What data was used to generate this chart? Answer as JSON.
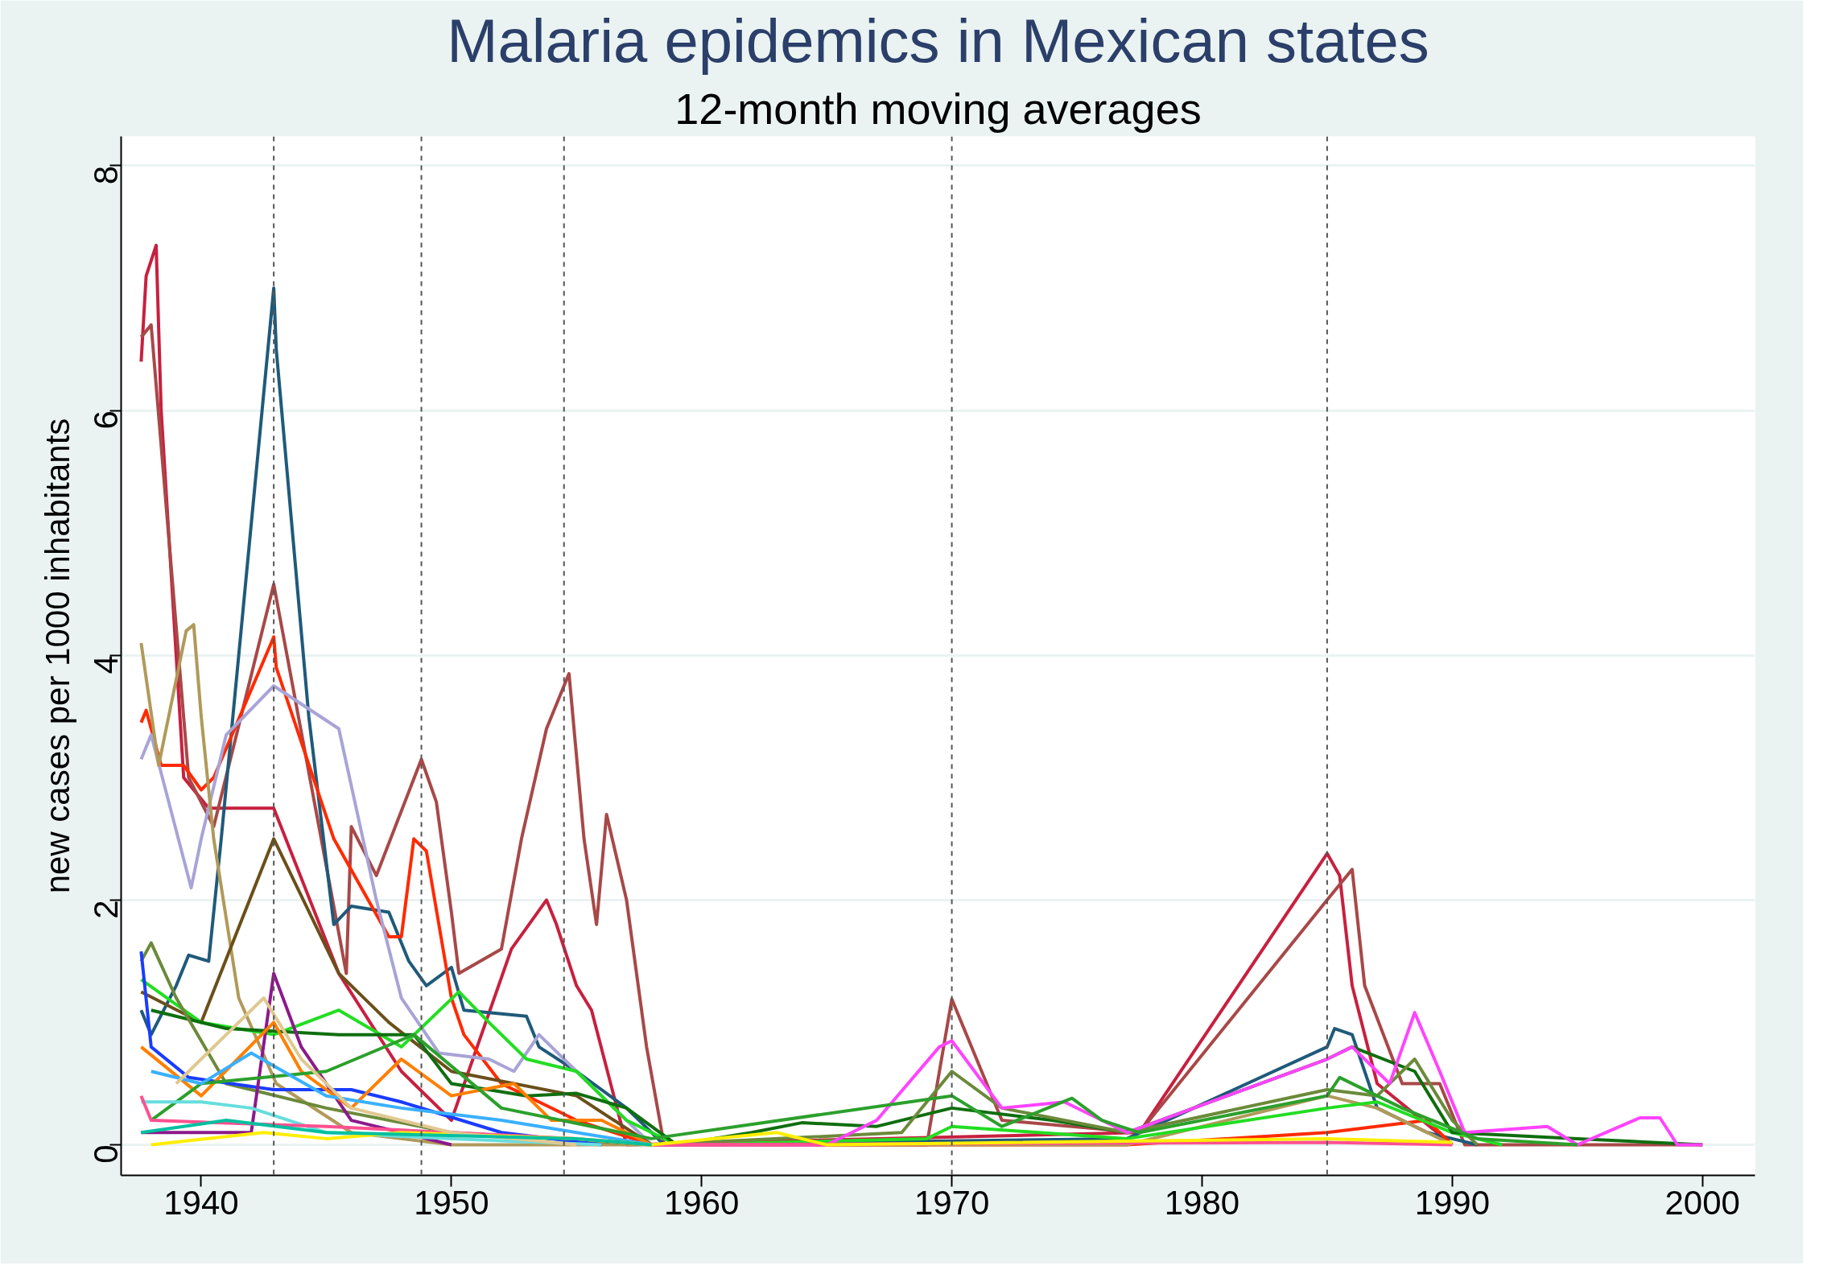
{
  "chart_data": {
    "type": "line",
    "title": "Malaria epidemics in Mexican states",
    "subtitle": "12-month moving averages",
    "ylabel": "new cases per 1000 inhabitants",
    "xlim": [
      1936.8,
      2002.1
    ],
    "ylim": [
      -0.25,
      8.24
    ],
    "xticks": [
      1940,
      1950,
      1960,
      1970,
      1980,
      1990,
      2000
    ],
    "yticks": [
      0,
      2,
      4,
      6,
      8
    ],
    "grid": "y",
    "marker": "none",
    "line_style": "solid",
    "ref_lines": [
      {
        "axis": "x",
        "value": 1942.9,
        "color": "#555555",
        "line_style": "dashed"
      },
      {
        "axis": "x",
        "value": 1948.8,
        "color": "#555555",
        "line_style": "dashed"
      },
      {
        "axis": "x",
        "value": 1954.5,
        "color": "#555555",
        "line_style": "dashed"
      },
      {
        "axis": "x",
        "value": 1970.0,
        "color": "#555555",
        "line_style": "dashed"
      },
      {
        "axis": "x",
        "value": 1985.0,
        "color": "#555555",
        "line_style": "dashed"
      }
    ],
    "series": [
      {
        "color": "#c8203f",
        "x": [
          1937.6,
          1937.8,
          1938.2,
          1938.4,
          1939.3,
          1940.3,
          1942.9,
          1945.5,
          1948,
          1950,
          1952.4,
          1953.8,
          1954.2,
          1955,
          1955.6,
          1957,
          1977.5,
          1985,
          1985.5,
          1986,
          1987,
          1990
        ],
        "values": [
          6.4,
          7.1,
          7.35,
          6.0,
          3.0,
          2.75,
          2.75,
          1.4,
          0.6,
          0.2,
          1.6,
          2.0,
          1.8,
          1.3,
          1.1,
          0,
          0.1,
          2.38,
          2.2,
          1.3,
          0.5,
          0
        ]
      },
      {
        "color": "#a84848",
        "x": [
          1937.6,
          1938,
          1939.5,
          1940.5,
          1942.9,
          1945.8,
          1946,
          1947,
          1948.8,
          1949.4,
          1950,
          1950.3,
          1952,
          1952.8,
          1953.8,
          1954.7,
          1955.3,
          1955.8,
          1956.2,
          1957,
          1957.8,
          1958.5,
          1969,
          1970,
          1972,
          1977.5,
          1985,
          1986,
          1986.5,
          1988,
          1989.5,
          1990.5,
          2000
        ],
        "values": [
          6.6,
          6.7,
          3.0,
          2.6,
          4.58,
          1.4,
          2.6,
          2.2,
          3.15,
          2.8,
          1.9,
          1.4,
          1.6,
          2.5,
          3.4,
          3.85,
          2.5,
          1.8,
          2.7,
          2.0,
          0.8,
          0,
          0,
          1.19,
          0.2,
          0.1,
          2.0,
          2.25,
          1.3,
          0.5,
          0.5,
          0,
          0
        ]
      },
      {
        "color": "#1f5a7a",
        "x": [
          1937.6,
          1938,
          1939,
          1939.5,
          1940.3,
          1940.8,
          1942.9,
          1943,
          1944.3,
          1945.3,
          1946,
          1947.5,
          1948.3,
          1949,
          1950,
          1950.5,
          1953,
          1953.5,
          1955,
          1957,
          1958.5,
          1977,
          1985,
          1985.3,
          1986,
          1987,
          1989,
          1991
        ],
        "values": [
          1.1,
          0.9,
          1.3,
          1.55,
          1.5,
          2.5,
          7.0,
          6.5,
          3.5,
          1.8,
          1.95,
          1.9,
          1.5,
          1.3,
          1.45,
          1.1,
          1.05,
          0.8,
          0.6,
          0.3,
          0,
          0.05,
          0.8,
          0.95,
          0.9,
          0.3,
          0.1,
          0
        ]
      },
      {
        "color": "#ff2a00",
        "x": [
          1937.6,
          1937.8,
          1938.4,
          1939.3,
          1940,
          1940.5,
          1942.9,
          1943,
          1945.3,
          1947.5,
          1948,
          1948.5,
          1949,
          1950,
          1950.5,
          1952,
          1955,
          1958,
          1977,
          1985,
          1989,
          1990
        ],
        "values": [
          3.45,
          3.55,
          3.1,
          3.1,
          2.9,
          3.0,
          4.15,
          3.9,
          2.5,
          1.7,
          1.7,
          2.5,
          2.4,
          1.2,
          0.9,
          0.5,
          0.2,
          0,
          0,
          0.1,
          0.2,
          0
        ]
      },
      {
        "color": "#a8a4d8",
        "x": [
          1937.6,
          1938,
          1939.6,
          1940,
          1941,
          1942.9,
          1945.5,
          1947,
          1948,
          1949.5,
          1951.5,
          1952.5,
          1953.5,
          1955,
          1957,
          1958
        ],
        "values": [
          3.15,
          3.35,
          2.1,
          2.5,
          3.35,
          3.75,
          3.4,
          2.0,
          1.2,
          0.75,
          0.7,
          0.6,
          0.9,
          0.6,
          0.2,
          0
        ]
      },
      {
        "color": "#b09a5a",
        "x": [
          1937.6,
          1938.3,
          1939.4,
          1939.7,
          1940,
          1940.5,
          1941.5,
          1943,
          1946,
          1950,
          1977,
          1985,
          1987,
          1990
        ],
        "values": [
          4.1,
          3.1,
          4.2,
          4.25,
          3.5,
          2.5,
          1.2,
          0.5,
          0.1,
          0,
          0,
          0.4,
          0.3,
          0
        ]
      },
      {
        "color": "#6b4f1a",
        "x": [
          1937.6,
          1940,
          1942.9,
          1945.5,
          1947.5,
          1950,
          1955,
          1958
        ],
        "values": [
          1.25,
          1.0,
          2.5,
          1.4,
          1.0,
          0.6,
          0.4,
          0
        ]
      },
      {
        "color": "#22dd22",
        "x": [
          1937.6,
          1940,
          1942.9,
          1945.5,
          1948,
          1950.3,
          1951.5,
          1953,
          1955,
          1957,
          1959,
          1969,
          1970,
          1977,
          1985,
          1987,
          1990,
          1992
        ],
        "values": [
          1.35,
          1.0,
          0.9,
          1.1,
          0.8,
          1.25,
          1.0,
          0.7,
          0.6,
          0.2,
          0,
          0.05,
          0.15,
          0.05,
          0.3,
          0.35,
          0.1,
          0
        ]
      },
      {
        "color": "#0f6e0f",
        "x": [
          1938,
          1941,
          1945.5,
          1948.5,
          1950,
          1953,
          1955,
          1957,
          1959,
          1962,
          1964,
          1967,
          1970,
          1974,
          1977,
          1985,
          1986,
          1988.5,
          1990,
          1995,
          2000
        ],
        "values": [
          1.1,
          0.95,
          0.9,
          0.9,
          0.5,
          0.4,
          0.42,
          0.3,
          0,
          0.1,
          0.18,
          0.15,
          0.3,
          0.2,
          0.1,
          0.7,
          0.8,
          0.6,
          0.1,
          0.05,
          0
        ]
      },
      {
        "color": "#6b8a3a",
        "x": [
          1937.6,
          1938,
          1939,
          1941,
          1945,
          1950,
          1958,
          1968,
          1970,
          1972,
          1977,
          1985,
          1987,
          1988.5,
          1990,
          1991
        ],
        "values": [
          1.5,
          1.65,
          1.2,
          0.5,
          0.3,
          0.1,
          0,
          0.1,
          0.6,
          0.3,
          0.1,
          0.45,
          0.4,
          0.7,
          0.2,
          0
        ]
      },
      {
        "color": "#ff44ff",
        "x": [
          1958,
          1965,
          1967,
          1969.5,
          1970,
          1972,
          1974.5,
          1977,
          1985,
          1986,
          1987.5,
          1988.5,
          1989.5,
          1990.5,
          1993.8,
          1995,
          1997.5,
          1998.3,
          1999,
          2000
        ],
        "values": [
          0,
          0,
          0.2,
          0.8,
          0.85,
          0.3,
          0.35,
          0.1,
          0.7,
          0.8,
          0.5,
          1.08,
          0.6,
          0.1,
          0.15,
          0,
          0.22,
          0.22,
          0,
          0
        ]
      },
      {
        "color": "#1a3cff",
        "x": [
          1937.6,
          1938,
          1939.5,
          1942.9,
          1946,
          1948,
          1952,
          1956
        ],
        "values": [
          1.58,
          0.8,
          0.55,
          0.45,
          0.45,
          0.35,
          0.1,
          0
        ]
      },
      {
        "color": "#8b1a8b",
        "x": [
          1937.6,
          1942,
          1942.9,
          1944,
          1946,
          1950
        ],
        "values": [
          0.1,
          0.1,
          1.4,
          0.8,
          0.2,
          0
        ]
      },
      {
        "color": "#ff7f00",
        "x": [
          1937.6,
          1940,
          1942.9,
          1944,
          1946,
          1948,
          1950,
          1952.5,
          1954,
          1956,
          1958
        ],
        "values": [
          0.8,
          0.4,
          1.0,
          0.6,
          0.3,
          0.7,
          0.4,
          0.5,
          0.2,
          0.2,
          0
        ]
      },
      {
        "color": "#2ca02c",
        "x": [
          1938,
          1940,
          1945,
          1948.5,
          1952,
          1958,
          1970,
          1972,
          1974.8,
          1976,
          1977.5,
          1985,
          1985.5,
          1988,
          1991,
          1995
        ],
        "values": [
          0.2,
          0.5,
          0.6,
          0.9,
          0.3,
          0.05,
          0.4,
          0.15,
          0.38,
          0.2,
          0.1,
          0.4,
          0.55,
          0.3,
          0.05,
          0
        ]
      },
      {
        "color": "#66dddd",
        "x": [
          1937.6,
          1940,
          1942,
          1945,
          1950,
          1956
        ],
        "values": [
          0.35,
          0.35,
          0.3,
          0.1,
          0.05,
          0
        ]
      },
      {
        "color": "#ff5090",
        "x": [
          1937.6,
          1938,
          1945,
          1950,
          1955,
          1958,
          1985,
          1990
        ],
        "values": [
          0.4,
          0.2,
          0.15,
          0.1,
          0.05,
          0,
          0.02,
          0
        ]
      },
      {
        "color": "#3ab0ff",
        "x": [
          1938,
          1940,
          1942,
          1945,
          1948,
          1952,
          1955,
          1958
        ],
        "values": [
          0.6,
          0.5,
          0.75,
          0.4,
          0.3,
          0.2,
          0.1,
          0
        ]
      },
      {
        "color": "#ffee00",
        "x": [
          1938,
          1942.5,
          1945,
          1948,
          1955,
          1958,
          1963,
          1965,
          1985,
          1990
        ],
        "values": [
          0,
          0.1,
          0.05,
          0.1,
          0.05,
          0,
          0.1,
          0,
          0.05,
          0.02
        ]
      },
      {
        "color": "#e0c890",
        "x": [
          1939,
          1942.5,
          1944,
          1946,
          1950,
          1955
        ],
        "values": [
          0.5,
          1.2,
          0.7,
          0.3,
          0.1,
          0
        ]
      },
      {
        "color": "#00c0a0",
        "x": [
          1937.6,
          1941,
          1945,
          1955,
          1958
        ],
        "values": [
          0.1,
          0.2,
          0.1,
          0.05,
          0
        ]
      }
    ]
  }
}
